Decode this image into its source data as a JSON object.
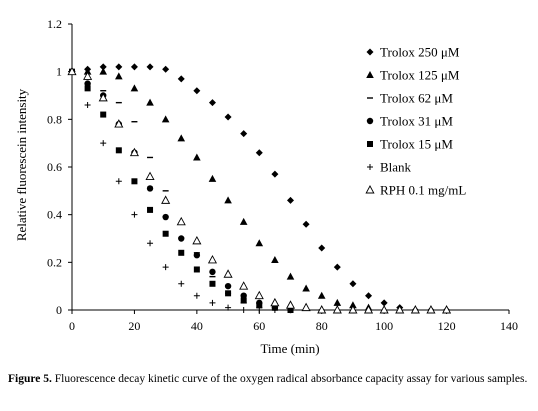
{
  "figure": {
    "label": "Figure 5.",
    "caption": "Fluorescence decay kinetic curve of the oxygen radical absorbance capacity assay for various samples."
  },
  "chart_data": {
    "type": "scatter",
    "xlabel": "Time (min)",
    "ylabel": "Relative fluorescein intensity",
    "xlim": [
      0,
      140
    ],
    "ylim": [
      0,
      1.2
    ],
    "xticks": [
      0,
      20,
      40,
      60,
      80,
      100,
      120,
      140
    ],
    "yticks": [
      0,
      0.2,
      0.4,
      0.6,
      0.8,
      1,
      1.2
    ],
    "ytick_labels": [
      "0",
      "0.2",
      "0.4",
      "0.6",
      "0.8",
      "1",
      "1.2"
    ],
    "grid": false,
    "legend_position": "right",
    "series": [
      {
        "name": "Trolox 250 μM",
        "marker": "diamond",
        "x": [
          0,
          5,
          10,
          15,
          20,
          25,
          30,
          35,
          40,
          45,
          50,
          55,
          60,
          65,
          70,
          75,
          80,
          85,
          90,
          95,
          100,
          105,
          110,
          115,
          120
        ],
        "y": [
          1.0,
          1.01,
          1.02,
          1.02,
          1.02,
          1.02,
          1.01,
          0.97,
          0.92,
          0.87,
          0.81,
          0.74,
          0.66,
          0.57,
          0.46,
          0.36,
          0.26,
          0.18,
          0.11,
          0.06,
          0.03,
          0.01,
          0.0,
          0.0,
          0.0
        ]
      },
      {
        "name": "Trolox 125 μM",
        "marker": "triangle",
        "x": [
          0,
          5,
          10,
          15,
          20,
          25,
          30,
          35,
          40,
          45,
          50,
          55,
          60,
          65,
          70,
          75,
          80,
          85,
          90,
          95,
          100,
          105
        ],
        "y": [
          1.0,
          1.0,
          1.0,
          0.98,
          0.93,
          0.87,
          0.8,
          0.72,
          0.64,
          0.55,
          0.46,
          0.37,
          0.28,
          0.21,
          0.14,
          0.09,
          0.06,
          0.03,
          0.02,
          0.01,
          0.0,
          0.0
        ]
      },
      {
        "name": "Trolox 62 μM",
        "marker": "dash",
        "x": [
          0,
          5,
          10,
          15,
          20,
          25,
          30,
          35,
          40,
          45,
          50,
          55,
          60,
          65,
          70,
          75,
          80
        ],
        "y": [
          1.0,
          0.97,
          0.92,
          0.87,
          0.79,
          0.64,
          0.5,
          0.36,
          0.24,
          0.14,
          0.07,
          0.03,
          0.01,
          0.0,
          0.0,
          0.0,
          0.0
        ]
      },
      {
        "name": "Trolox 31 μM",
        "marker": "circle",
        "x": [
          0,
          5,
          10,
          15,
          20,
          25,
          30,
          35,
          40,
          45,
          50,
          55,
          60,
          65,
          70
        ],
        "y": [
          1.0,
          0.95,
          0.9,
          0.78,
          0.66,
          0.51,
          0.39,
          0.3,
          0.23,
          0.16,
          0.1,
          0.06,
          0.03,
          0.01,
          0.0
        ]
      },
      {
        "name": "Trolox 15 μM",
        "marker": "square",
        "x": [
          0,
          5,
          10,
          15,
          20,
          25,
          30,
          35,
          40,
          45,
          50,
          55,
          60,
          65,
          70
        ],
        "y": [
          1.0,
          0.93,
          0.82,
          0.67,
          0.54,
          0.42,
          0.32,
          0.24,
          0.17,
          0.11,
          0.07,
          0.04,
          0.02,
          0.01,
          0.0
        ]
      },
      {
        "name": "Blank",
        "marker": "plus",
        "x": [
          0,
          5,
          10,
          15,
          20,
          25,
          30,
          35,
          40,
          45,
          50,
          55,
          60,
          65,
          70
        ],
        "y": [
          1.0,
          0.86,
          0.7,
          0.54,
          0.4,
          0.28,
          0.18,
          0.11,
          0.06,
          0.03,
          0.01,
          0.0,
          0.0,
          0.0,
          0.0
        ]
      },
      {
        "name": "RPH 0.1 mg/mL",
        "marker": "triangle-open",
        "x": [
          0,
          5,
          10,
          15,
          20,
          25,
          30,
          35,
          40,
          45,
          50,
          55,
          60,
          65,
          70,
          75,
          80,
          85,
          90,
          95,
          100,
          105,
          110,
          115,
          120
        ],
        "y": [
          1.0,
          0.98,
          0.89,
          0.78,
          0.66,
          0.56,
          0.46,
          0.37,
          0.29,
          0.21,
          0.15,
          0.1,
          0.06,
          0.03,
          0.02,
          0.01,
          0.0,
          0.0,
          0.0,
          0.0,
          0.0,
          0.0,
          0.0,
          0.0,
          0.0
        ]
      }
    ]
  }
}
